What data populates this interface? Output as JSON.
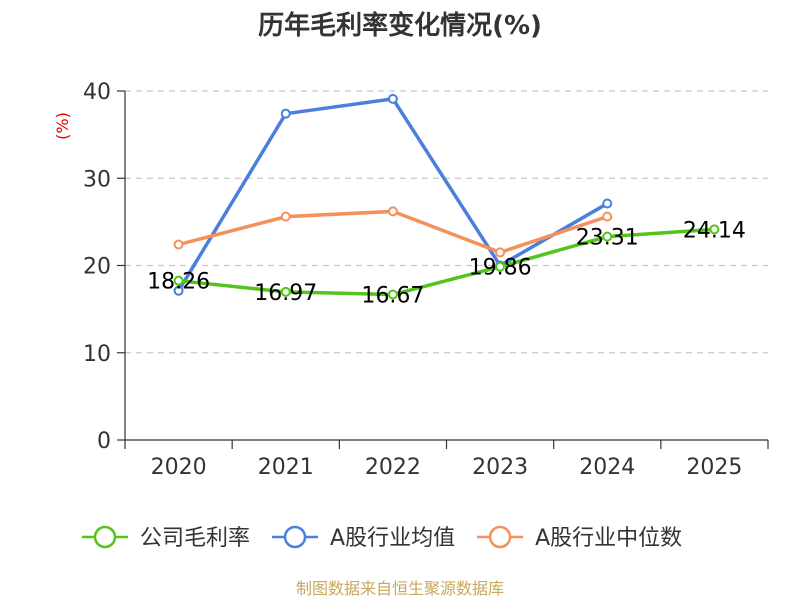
{
  "chart_data": {
    "type": "line",
    "title": "历年毛利率变化情况(%)",
    "ylabel": "(%)",
    "xlabel": "",
    "categories": [
      "2020",
      "2021",
      "2022",
      "2023",
      "2024",
      "2025"
    ],
    "ylim": [
      0,
      40
    ],
    "yticks": [
      0,
      10,
      20,
      30,
      40
    ],
    "grid": true,
    "legend_position": "bottom",
    "series": [
      {
        "name": "公司毛利率",
        "color": "#52c41a",
        "values": [
          18.26,
          16.97,
          16.67,
          19.86,
          23.31,
          24.14
        ],
        "labels": [
          "18.26",
          "16.97",
          "16.67",
          "19.86",
          "23.31",
          "24.14"
        ]
      },
      {
        "name": "A股行业均值",
        "color": "#4a7fdc",
        "values": [
          17.1,
          37.4,
          39.1,
          20.0,
          27.1,
          null
        ]
      },
      {
        "name": "A股行业中位数",
        "color": "#f5905a",
        "values": [
          22.4,
          25.6,
          26.2,
          21.5,
          25.6,
          null
        ]
      }
    ],
    "source": "制图数据来自恒生聚源数据库"
  }
}
